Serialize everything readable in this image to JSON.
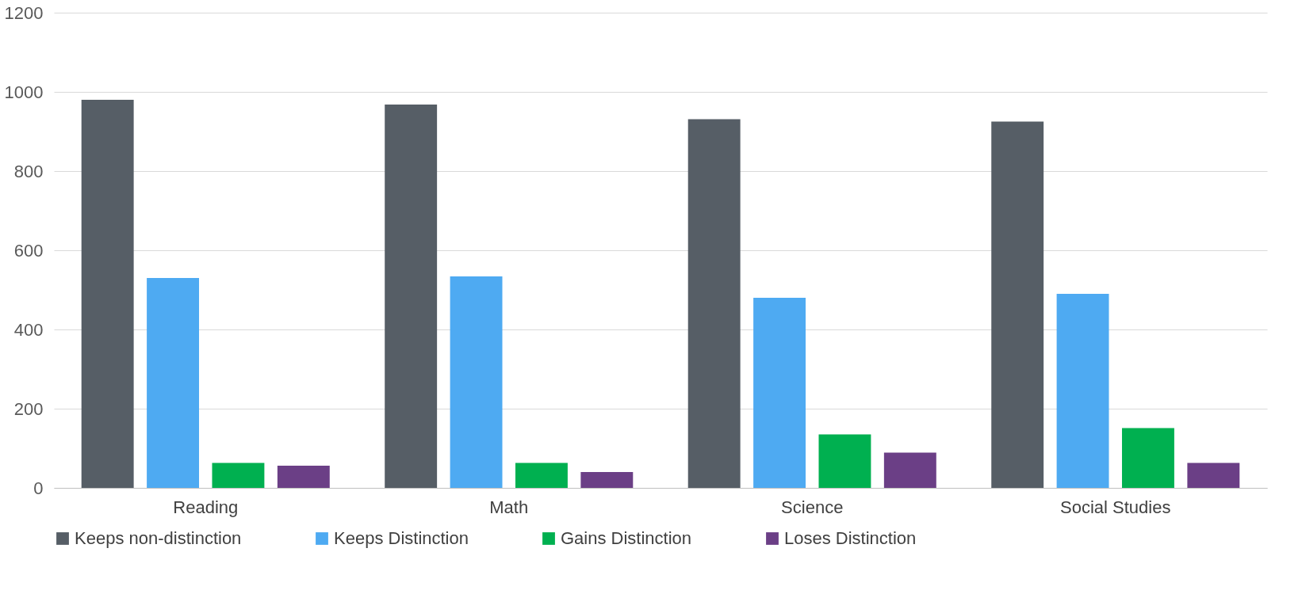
{
  "chart_data": {
    "type": "bar",
    "categories": [
      "Reading",
      "Math",
      "Science",
      "Social Studies"
    ],
    "series": [
      {
        "name": "Keeps non-distinction",
        "color": "#565e66",
        "values": [
          980,
          968,
          931,
          925
        ]
      },
      {
        "name": "Keeps Distinction",
        "color": "#4eaaf2",
        "values": [
          530,
          534,
          480,
          490
        ]
      },
      {
        "name": "Gains Distinction",
        "color": "#00b050",
        "values": [
          63,
          63,
          135,
          151
        ]
      },
      {
        "name": "Loses Distinction",
        "color": "#6b3f86",
        "values": [
          56,
          40,
          89,
          63
        ]
      }
    ],
    "ylim": [
      0,
      1200
    ],
    "yticks": [
      0,
      200,
      400,
      600,
      800,
      1000,
      1200
    ],
    "grid": "y",
    "legend": "bottom"
  }
}
